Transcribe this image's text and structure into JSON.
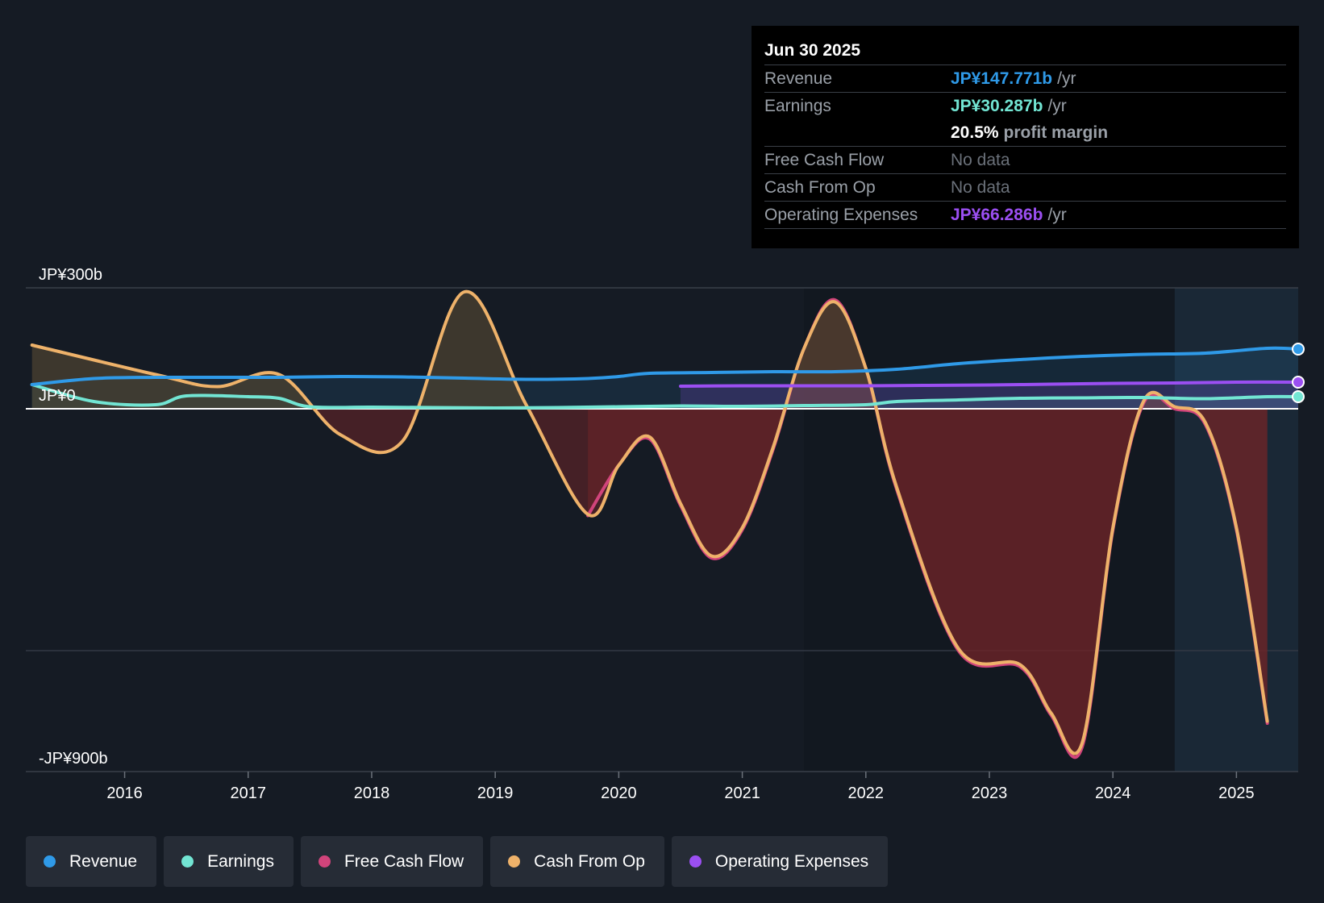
{
  "colors": {
    "background": "#151b24",
    "revenue": "#2f9ae8",
    "earnings": "#72e5d3",
    "free_cash_flow": "#d1447b",
    "cash_from_op": "#eeb26a",
    "operating_expenses": "#9b4ff2",
    "negative_fill": "#6e2428",
    "positive_fill": "#4b4230"
  },
  "tooltip": {
    "date": "Jun 30 2025",
    "rows": [
      {
        "label": "Revenue",
        "value": "JP¥147.771b",
        "unit": "/yr"
      },
      {
        "label": "Earnings",
        "value": "JP¥30.287b",
        "unit": "/yr"
      },
      {
        "label": "",
        "value": "20.5%",
        "unit": "profit margin"
      },
      {
        "label": "Free Cash Flow",
        "value": "No data",
        "unit": ""
      },
      {
        "label": "Cash From Op",
        "value": "No data",
        "unit": ""
      },
      {
        "label": "Operating Expenses",
        "value": "JP¥66.286b",
        "unit": "/yr"
      }
    ]
  },
  "legend": [
    {
      "label": "Revenue",
      "icon": "revenue-dot-icon"
    },
    {
      "label": "Earnings",
      "icon": "earnings-dot-icon"
    },
    {
      "label": "Free Cash Flow",
      "icon": "free-cash-flow-dot-icon"
    },
    {
      "label": "Cash From Op",
      "icon": "cash-from-op-dot-icon"
    },
    {
      "label": "Operating Expenses",
      "icon": "operating-expenses-dot-icon"
    }
  ],
  "chart_data": {
    "type": "line",
    "title": "",
    "xlabel": "",
    "ylabel": "",
    "y_tick_labels": [
      {
        "label": "JP¥300b",
        "value": 300
      },
      {
        "label": "JP¥0",
        "value": 0
      },
      {
        "label": "-JP¥900b",
        "value": -900
      }
    ],
    "ylim": [
      -900,
      300
    ],
    "xlim": [
      2015.2,
      2025.5
    ],
    "x_ticks": [
      2016,
      2017,
      2018,
      2019,
      2020,
      2021,
      2022,
      2023,
      2024,
      2025
    ],
    "x_tick_labels": [
      "2016",
      "2017",
      "2018",
      "2019",
      "2020",
      "2021",
      "2022",
      "2023",
      "2024",
      "2025"
    ],
    "forecast_start": 2024.5,
    "series": [
      {
        "name": "Revenue",
        "key": "revenue",
        "x": [
          2015.25,
          2015.75,
          2016.25,
          2016.75,
          2017.25,
          2017.75,
          2018.25,
          2018.75,
          2019.25,
          2019.75,
          2020.0,
          2020.25,
          2020.75,
          2021.25,
          2021.75,
          2022.25,
          2022.75,
          2023.25,
          2023.75,
          2024.25,
          2024.75,
          2025.25,
          2025.5
        ],
        "y": [
          60,
          75,
          78,
          78,
          78,
          80,
          79,
          76,
          73,
          75,
          80,
          88,
          90,
          92,
          92,
          98,
          112,
          122,
          130,
          135,
          138,
          150,
          148
        ]
      },
      {
        "name": "Earnings",
        "key": "earnings",
        "x": [
          2015.25,
          2015.75,
          2016.25,
          2016.5,
          2017.0,
          2017.25,
          2017.5,
          2018.0,
          2018.5,
          2019.0,
          2019.5,
          2020.0,
          2020.5,
          2021.0,
          2021.5,
          2022.0,
          2022.25,
          2022.75,
          2023.25,
          2023.75,
          2024.25,
          2024.75,
          2025.25,
          2025.5
        ],
        "y": [
          60,
          18,
          10,
          32,
          30,
          26,
          5,
          4,
          3,
          2,
          3,
          5,
          7,
          6,
          8,
          10,
          18,
          22,
          26,
          27,
          28,
          25,
          30,
          30
        ]
      },
      {
        "name": "Free Cash Flow",
        "key": "free_cash_flow",
        "x": [
          2019.75,
          2020.0,
          2020.25,
          2020.5,
          2020.75,
          2021.0,
          2021.25,
          2021.5,
          2021.75,
          2022.0,
          2022.25,
          2022.75,
          2023.25,
          2023.5,
          2023.75,
          2024.0,
          2024.25,
          2024.5,
          2024.75,
          2025.0,
          2025.25
        ],
        "y": [
          -265,
          -140,
          -75,
          -240,
          -370,
          -300,
          -100,
          150,
          270,
          100,
          -200,
          -600,
          -640,
          -760,
          -840,
          -300,
          15,
          0,
          -40,
          -300,
          -780
        ]
      },
      {
        "name": "Cash From Op",
        "key": "cash_from_op",
        "x": [
          2015.25,
          2016.25,
          2016.75,
          2017.25,
          2017.75,
          2018.25,
          2018.75,
          2019.25,
          2019.75,
          2020.0,
          2020.25,
          2020.5,
          2020.75,
          2021.0,
          2021.25,
          2021.5,
          2021.75,
          2022.0,
          2022.25,
          2022.75,
          2023.25,
          2023.5,
          2023.75,
          2024.0,
          2024.25,
          2024.5,
          2024.75,
          2025.0,
          2025.25
        ],
        "y": [
          158,
          85,
          55,
          85,
          -65,
          -80,
          290,
          10,
          -262,
          -140,
          -70,
          -235,
          -365,
          -295,
          -95,
          150,
          265,
          100,
          -195,
          -595,
          -635,
          -755,
          -830,
          -295,
          20,
          5,
          -35,
          -295,
          -775
        ]
      },
      {
        "name": "Operating Expenses",
        "key": "operating_expenses",
        "x": [
          2020.5,
          2021.0,
          2021.5,
          2022.0,
          2022.5,
          2023.0,
          2023.5,
          2024.0,
          2024.5,
          2025.0,
          2025.5
        ],
        "y": [
          56,
          57,
          57,
          57,
          58,
          59,
          61,
          63,
          64,
          66,
          66
        ]
      }
    ]
  }
}
